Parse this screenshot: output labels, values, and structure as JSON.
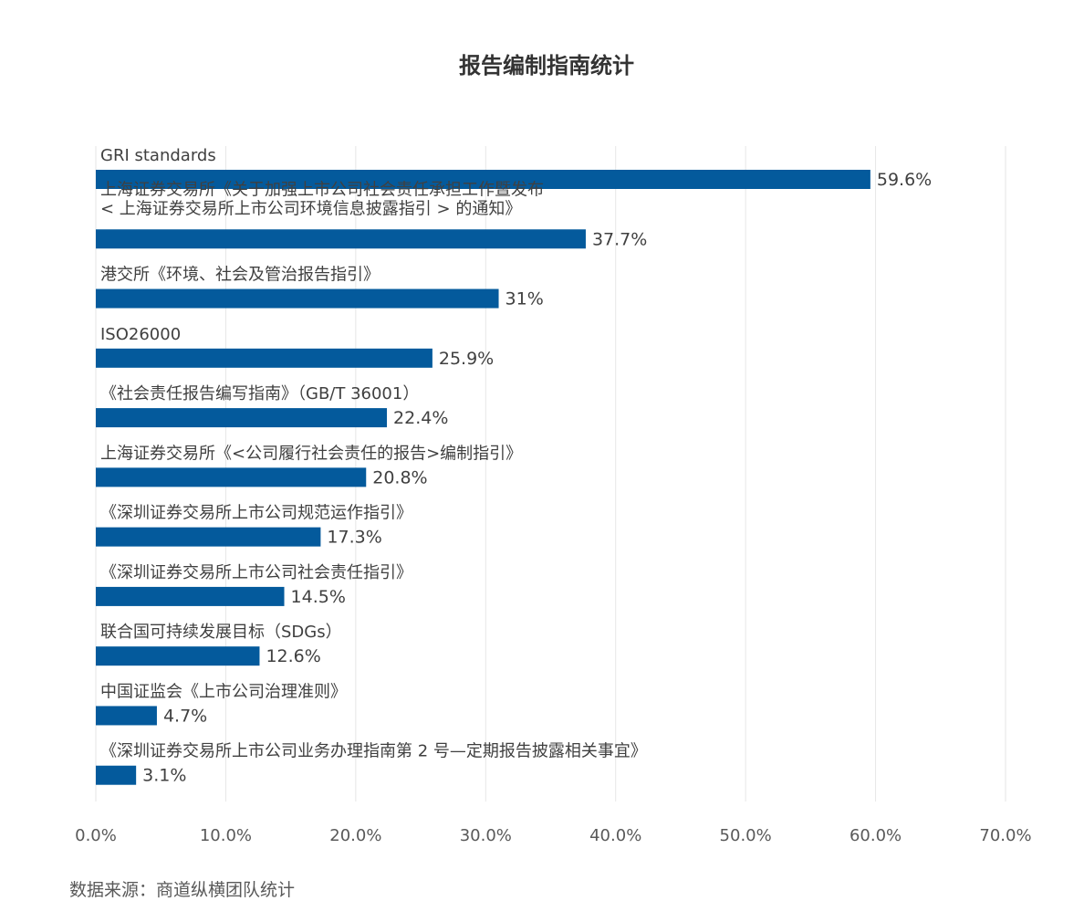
{
  "chart_data": {
    "type": "bar",
    "orientation": "horizontal",
    "title": "报告编制指南统计",
    "categories": [
      "GRI standards",
      "上海证券交易所《关于加强上市公司社会责任承担工作暨发布\n< 上海证券交易所上市公司环境信息披露指引 > 的通知》",
      "港交所《环境、社会及管治报告指引》",
      "ISO26000",
      "《社会责任报告编写指南》（GB/T 36001）",
      "上海证券交易所《<公司履行社会责任的报告>编制指引》",
      "《深圳证券交易所上市公司规范运作指引》",
      "《深圳证券交易所上市公司社会责任指引》",
      "联合国可持续发展目标（SDGs）",
      "中国证监会《上市公司治理准则》",
      "《深圳证券交易所上市公司业务办理指南第 2 号—定期报告披露相关事宜》"
    ],
    "values": [
      59.6,
      37.7,
      31,
      25.9,
      22.4,
      20.8,
      17.3,
      14.5,
      12.6,
      4.7,
      3.1
    ],
    "value_labels": [
      "59.6%",
      "37.7%",
      "31%",
      "25.9%",
      "22.4%",
      "20.8%",
      "17.3%",
      "14.5%",
      "12.6%",
      "4.7%",
      "3.1%"
    ],
    "xlim": [
      0,
      70
    ],
    "xticks": [
      "0.0%",
      "10.0%",
      "20.0%",
      "30.0%",
      "40.0%",
      "50.0%",
      "60.0%",
      "70.0%"
    ],
    "grid": true,
    "bar_color": "#045A9C",
    "grid_color": "#E6E6E6"
  },
  "source": "数据来源：商道纵横团队统计"
}
